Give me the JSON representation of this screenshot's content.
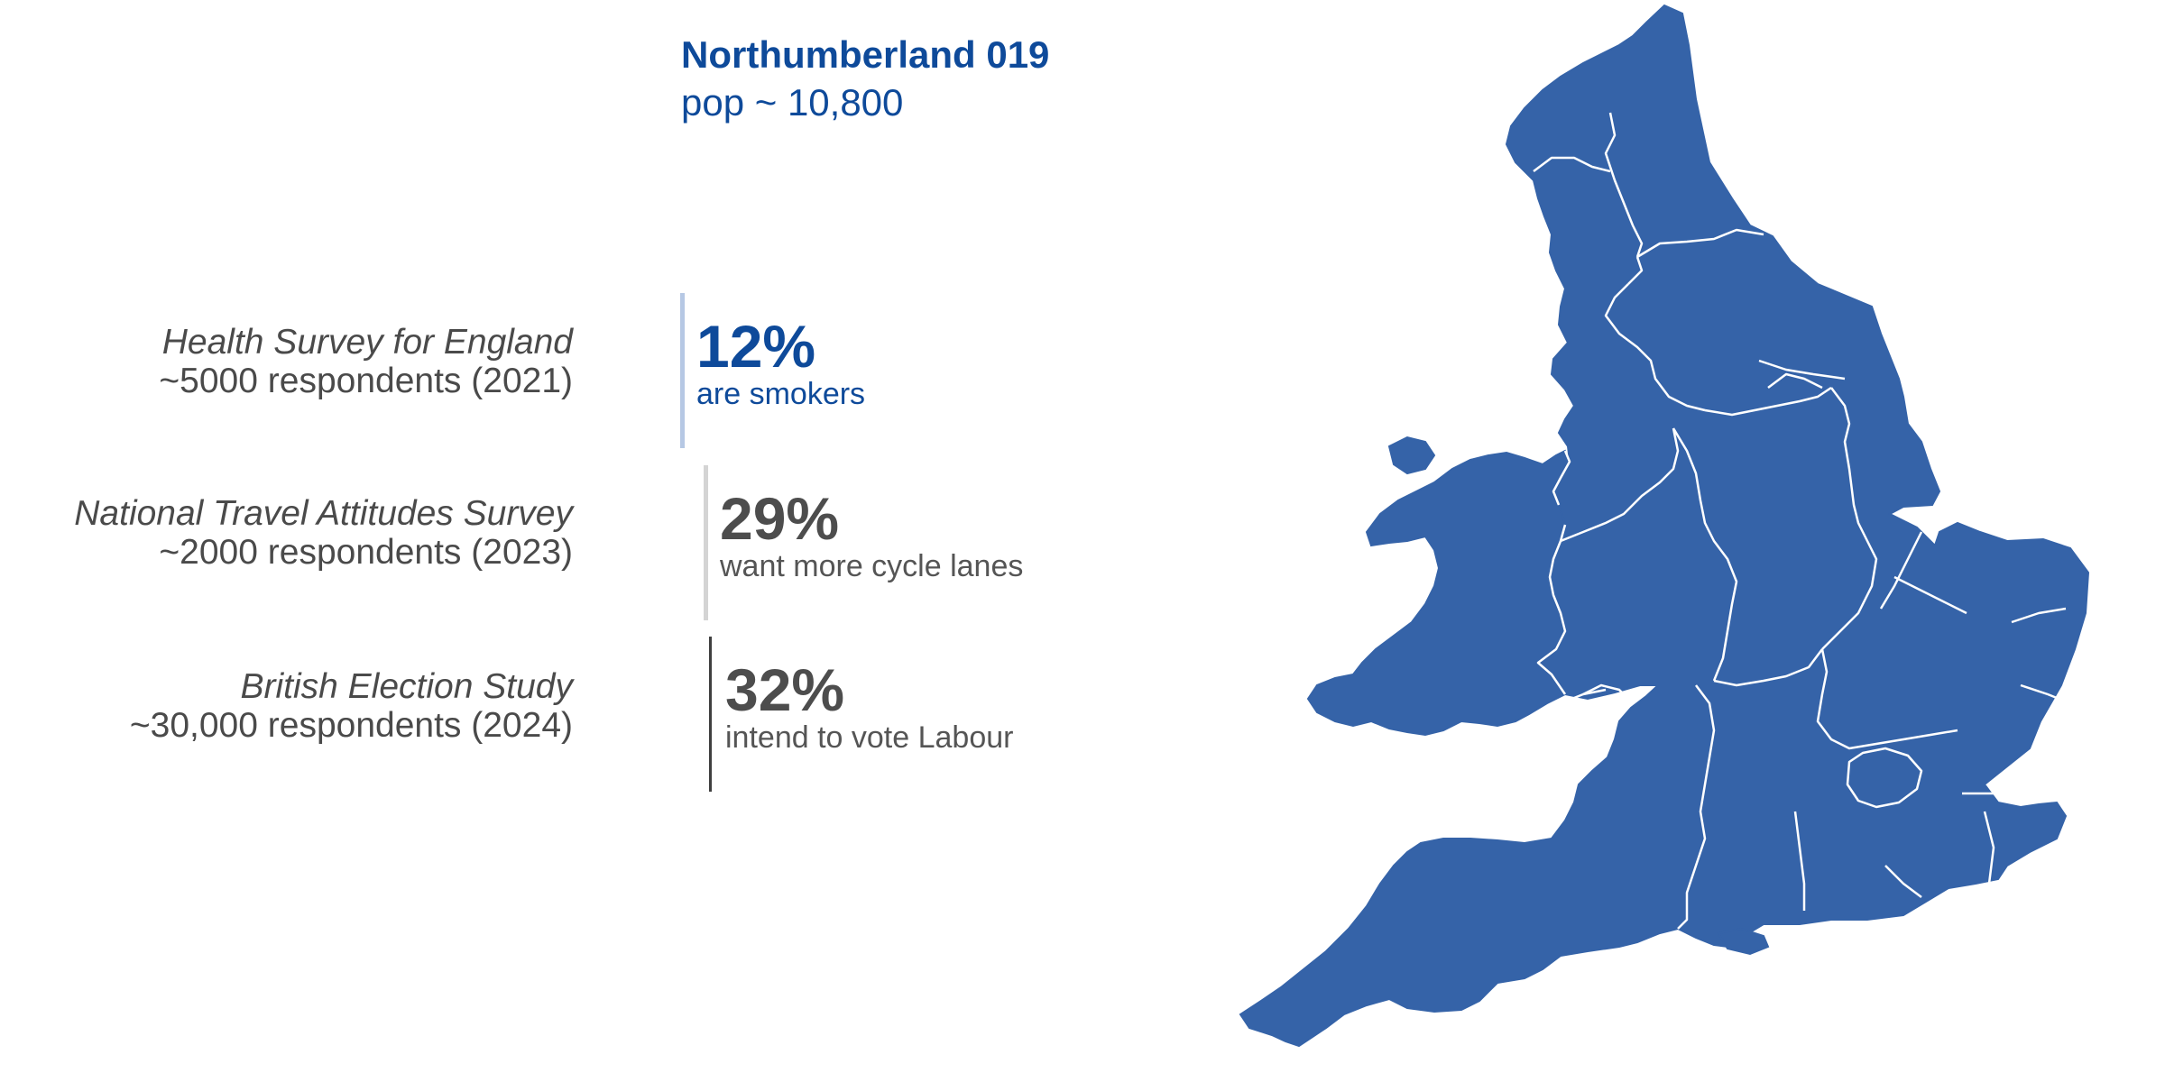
{
  "area": {
    "name": "Northumberland 019",
    "population": "pop ~ 10,800"
  },
  "surveys": [
    {
      "name": "Health Survey for England",
      "respondents": "~5000 respondents (2021)",
      "value": "12%",
      "description": "are smokers",
      "value_fraction": 0.12,
      "accent_color": "#0e4a9a",
      "bar_color": "#b6c8e4"
    },
    {
      "name": "National Travel Attitudes Survey",
      "respondents": "~2000 respondents (2023)",
      "value": "29%",
      "description": "want more cycle lanes",
      "value_fraction": 0.29,
      "accent_color": "#4d4d4d",
      "bar_color": "#d4d4d4"
    },
    {
      "name": "British Election Study",
      "respondents": "~30,000 respondents (2024)",
      "value": "32%",
      "description": "intend to vote Labour",
      "value_fraction": 0.32,
      "accent_color": "#4d4d4d",
      "bar_color": "#3f3f3f"
    }
  ],
  "map": {
    "fill_color": "#3563a8",
    "border_color": "#ffffff"
  }
}
